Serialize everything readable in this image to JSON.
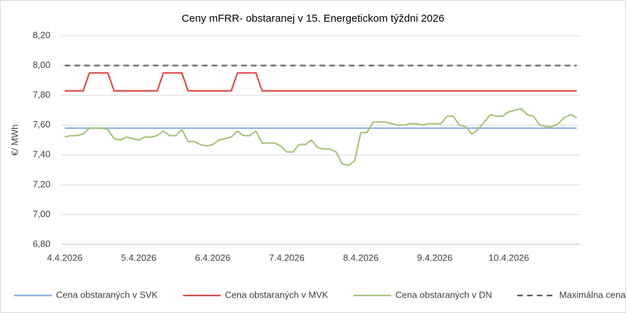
{
  "chart_data": {
    "type": "line",
    "title": "Ceny mFRR- obstaranej v 15. Energetickom týždni 2026",
    "y_label": "€/ MWh",
    "categories": [
      "4.4.2026",
      null,
      null,
      null,
      null,
      null,
      null,
      null,
      null,
      null,
      null,
      null,
      "5.4.2026",
      null,
      null,
      null,
      null,
      null,
      null,
      null,
      null,
      null,
      null,
      null,
      "6.4.2026",
      null,
      null,
      null,
      null,
      null,
      null,
      null,
      null,
      null,
      null,
      null,
      "7.4.2026",
      null,
      null,
      null,
      null,
      null,
      null,
      null,
      null,
      null,
      null,
      null,
      "8.4.2026",
      null,
      null,
      null,
      null,
      null,
      null,
      null,
      null,
      null,
      null,
      null,
      "9.4.2026",
      null,
      null,
      null,
      null,
      null,
      null,
      null,
      null,
      null,
      null,
      null,
      "10.4.2026",
      null,
      null,
      null,
      null,
      null,
      null,
      null,
      null,
      null,
      null,
      null
    ],
    "ylim": [
      6.8,
      8.2
    ],
    "yticks": [
      {
        "value": 6.8,
        "label": "6,80"
      },
      {
        "value": 7.0,
        "label": "7,00"
      },
      {
        "value": 7.2,
        "label": "7,20"
      },
      {
        "value": 7.4,
        "label": "7,40"
      },
      {
        "value": 7.6,
        "label": "7,60"
      },
      {
        "value": 7.8,
        "label": "7,80"
      },
      {
        "value": 8.0,
        "label": "8,00"
      },
      {
        "value": 8.2,
        "label": "8,20"
      }
    ],
    "grid": true,
    "legend": "bottom",
    "series": [
      {
        "name": "Cena obstaraných v SVK",
        "color": "#8db3e2",
        "dashed": false,
        "values": [
          7.58,
          7.58,
          7.58,
          7.58,
          7.58,
          7.58,
          7.58,
          7.58,
          7.58,
          7.58,
          7.58,
          7.58,
          7.58,
          7.58,
          7.58,
          7.58,
          7.58,
          7.58,
          7.58,
          7.58,
          7.58,
          7.58,
          7.58,
          7.58,
          7.58,
          7.58,
          7.58,
          7.58,
          7.58,
          7.58,
          7.58,
          7.58,
          7.58,
          7.58,
          7.58,
          7.58,
          7.58,
          7.58,
          7.58,
          7.58,
          7.58,
          7.58,
          7.58,
          7.58,
          7.58,
          7.58,
          7.58,
          7.58,
          7.58,
          7.58,
          7.58,
          7.58,
          7.58,
          7.58,
          7.58,
          7.58,
          7.58,
          7.58,
          7.58,
          7.58,
          7.58,
          7.58,
          7.58,
          7.58,
          7.58,
          7.58,
          7.58,
          7.58,
          7.58,
          7.58,
          7.58,
          7.58,
          7.58,
          7.58,
          7.58,
          7.58,
          7.58,
          7.58,
          7.58,
          7.58,
          7.58,
          7.58,
          7.58,
          7.58
        ]
      },
      {
        "name": "Cena obstaraných v MVK",
        "color": "#dc4a4a",
        "dashed": false,
        "values": [
          7.83,
          7.83,
          7.83,
          7.83,
          7.95,
          7.95,
          7.95,
          7.95,
          7.83,
          7.83,
          7.83,
          7.83,
          7.83,
          7.83,
          7.83,
          7.83,
          7.95,
          7.95,
          7.95,
          7.95,
          7.83,
          7.83,
          7.83,
          7.83,
          7.83,
          7.83,
          7.83,
          7.83,
          7.95,
          7.95,
          7.95,
          7.95,
          7.83,
          7.83,
          7.83,
          7.83,
          7.83,
          7.83,
          7.83,
          7.83,
          7.83,
          7.83,
          7.83,
          7.83,
          7.83,
          7.83,
          7.83,
          7.83,
          7.83,
          7.83,
          7.83,
          7.83,
          7.83,
          7.83,
          7.83,
          7.83,
          7.83,
          7.83,
          7.83,
          7.83,
          7.83,
          7.83,
          7.83,
          7.83,
          7.83,
          7.83,
          7.83,
          7.83,
          7.83,
          7.83,
          7.83,
          7.83,
          7.83,
          7.83,
          7.83,
          7.83,
          7.83,
          7.83,
          7.83,
          7.83,
          7.83,
          7.83,
          7.83,
          7.83
        ]
      },
      {
        "name": "Cena obstaraných v DN",
        "color": "#a8c47e",
        "dashed": false,
        "values": [
          7.52,
          7.53,
          7.53,
          7.54,
          7.58,
          7.58,
          7.58,
          7.57,
          7.51,
          7.5,
          7.52,
          7.51,
          7.5,
          7.52,
          7.52,
          7.53,
          7.56,
          7.53,
          7.53,
          7.57,
          7.49,
          7.49,
          7.47,
          7.46,
          7.47,
          7.5,
          7.51,
          7.52,
          7.56,
          7.53,
          7.53,
          7.56,
          7.48,
          7.48,
          7.48,
          7.46,
          7.42,
          7.42,
          7.47,
          7.47,
          7.5,
          7.45,
          7.44,
          7.44,
          7.42,
          7.34,
          7.33,
          7.36,
          7.55,
          7.55,
          7.62,
          7.62,
          7.62,
          7.61,
          7.6,
          7.6,
          7.61,
          7.61,
          7.6,
          7.61,
          7.61,
          7.61,
          7.66,
          7.66,
          7.6,
          7.59,
          7.54,
          7.57,
          7.62,
          7.67,
          7.66,
          7.66,
          7.69,
          7.7,
          7.71,
          7.67,
          7.66,
          7.6,
          7.59,
          7.59,
          7.61,
          7.65,
          7.67,
          7.65
        ]
      },
      {
        "name": "Maximálna cena ÚRSO",
        "color": "#595959",
        "dashed": true,
        "values": [
          8.0,
          8.0,
          8.0,
          8.0,
          8.0,
          8.0,
          8.0,
          8.0,
          8.0,
          8.0,
          8.0,
          8.0,
          8.0,
          8.0,
          8.0,
          8.0,
          8.0,
          8.0,
          8.0,
          8.0,
          8.0,
          8.0,
          8.0,
          8.0,
          8.0,
          8.0,
          8.0,
          8.0,
          8.0,
          8.0,
          8.0,
          8.0,
          8.0,
          8.0,
          8.0,
          8.0,
          8.0,
          8.0,
          8.0,
          8.0,
          8.0,
          8.0,
          8.0,
          8.0,
          8.0,
          8.0,
          8.0,
          8.0,
          8.0,
          8.0,
          8.0,
          8.0,
          8.0,
          8.0,
          8.0,
          8.0,
          8.0,
          8.0,
          8.0,
          8.0,
          8.0,
          8.0,
          8.0,
          8.0,
          8.0,
          8.0,
          8.0,
          8.0,
          8.0,
          8.0,
          8.0,
          8.0,
          8.0,
          8.0,
          8.0,
          8.0,
          8.0,
          8.0,
          8.0,
          8.0,
          8.0,
          8.0,
          8.0,
          8.0
        ]
      }
    ]
  }
}
